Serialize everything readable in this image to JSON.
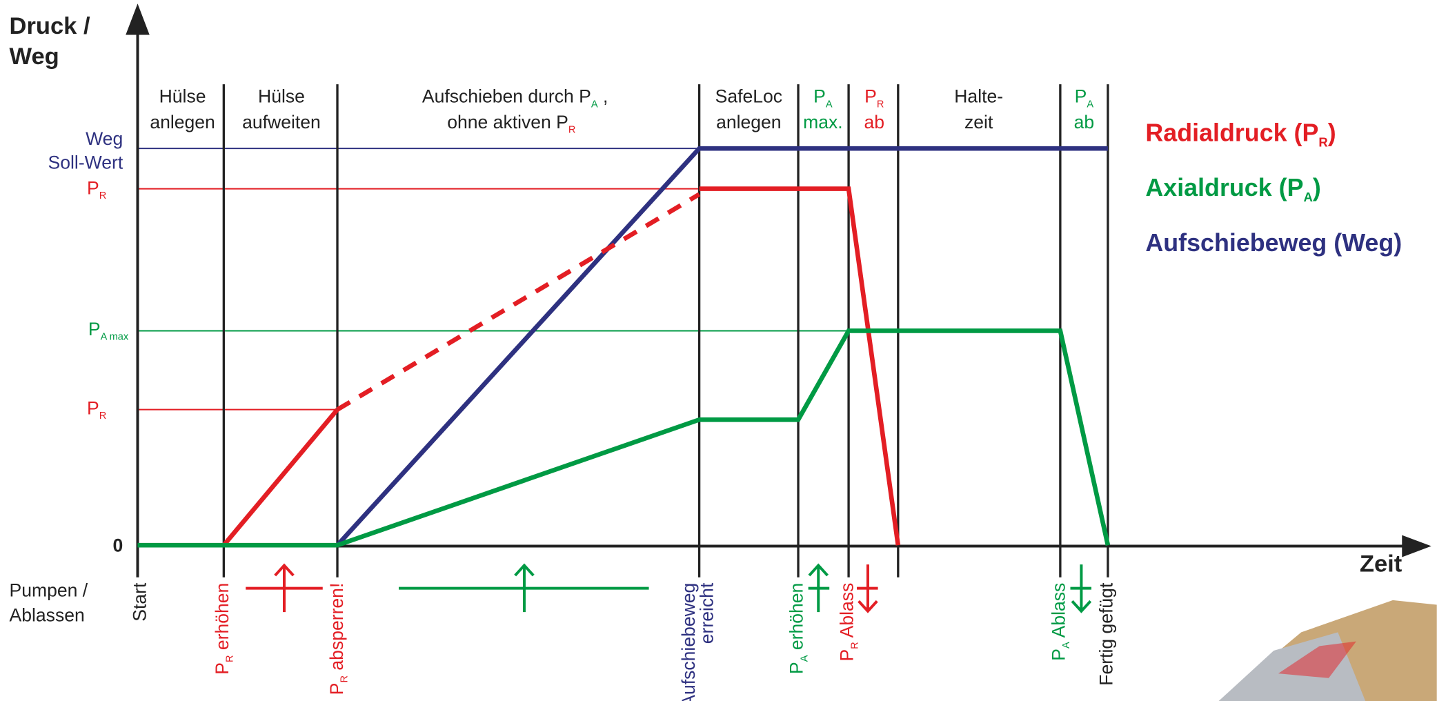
{
  "y_axis_label": [
    "Druck /",
    "Weg"
  ],
  "x_axis_label": "Zeit",
  "origin_label": "0",
  "pump_row_label": [
    "Pumpen /",
    "Ablassen"
  ],
  "phases": [
    {
      "lines": [
        "Hülse",
        "anlegen"
      ]
    },
    {
      "lines": [
        "Hülse",
        "aufweiten"
      ]
    },
    {
      "lines": [
        {
          "text": "Aufschieben durch P",
          "sub": "A",
          "after": " ,"
        },
        {
          "text": "ohne aktiven P",
          "sub": "R"
        }
      ]
    },
    {
      "lines": [
        "SafeLoc",
        "anlegen"
      ]
    },
    {
      "lines": [
        {
          "text": "P",
          "sub": "A"
        },
        "max."
      ]
    },
    {
      "lines": [
        {
          "text": "P",
          "sub": "R"
        },
        "ab"
      ]
    },
    {
      "lines": [
        "Halte-",
        "zeit"
      ]
    },
    {
      "lines": [
        {
          "text": "P",
          "sub": "A"
        },
        "ab"
      ]
    }
  ],
  "levels": [
    {
      "lines": [
        "Weg",
        "Soll-Wert"
      ]
    },
    {
      "text": "P",
      "sub": "R"
    },
    {
      "text": "P",
      "sub": "A max"
    },
    {
      "text": "P",
      "sub": "R"
    }
  ],
  "legend": [
    {
      "text": "Radialdruck (P",
      "sub": "R",
      "after": ")"
    },
    {
      "text": "Axialdruck (P",
      "sub": "A",
      "after": ")"
    },
    {
      "text": "Aufschiebeweg (Weg)"
    }
  ],
  "events": [
    {
      "text": "Start"
    },
    {
      "text": "P",
      "sub": "R",
      "after": " erhöhen"
    },
    {
      "text": "P",
      "sub": "R",
      "after": " absperren!"
    },
    {
      "lines": [
        "Aufschiebeweg",
        "erreicht"
      ]
    },
    {
      "text": "P",
      "sub": "A",
      "after": " erhöhen"
    },
    {
      "text": "P",
      "sub": "R",
      "after": " Ablass"
    },
    {
      "text": "P",
      "sub": "A",
      "after": " Ablass"
    },
    {
      "text": "Fertig gefügt"
    }
  ]
}
